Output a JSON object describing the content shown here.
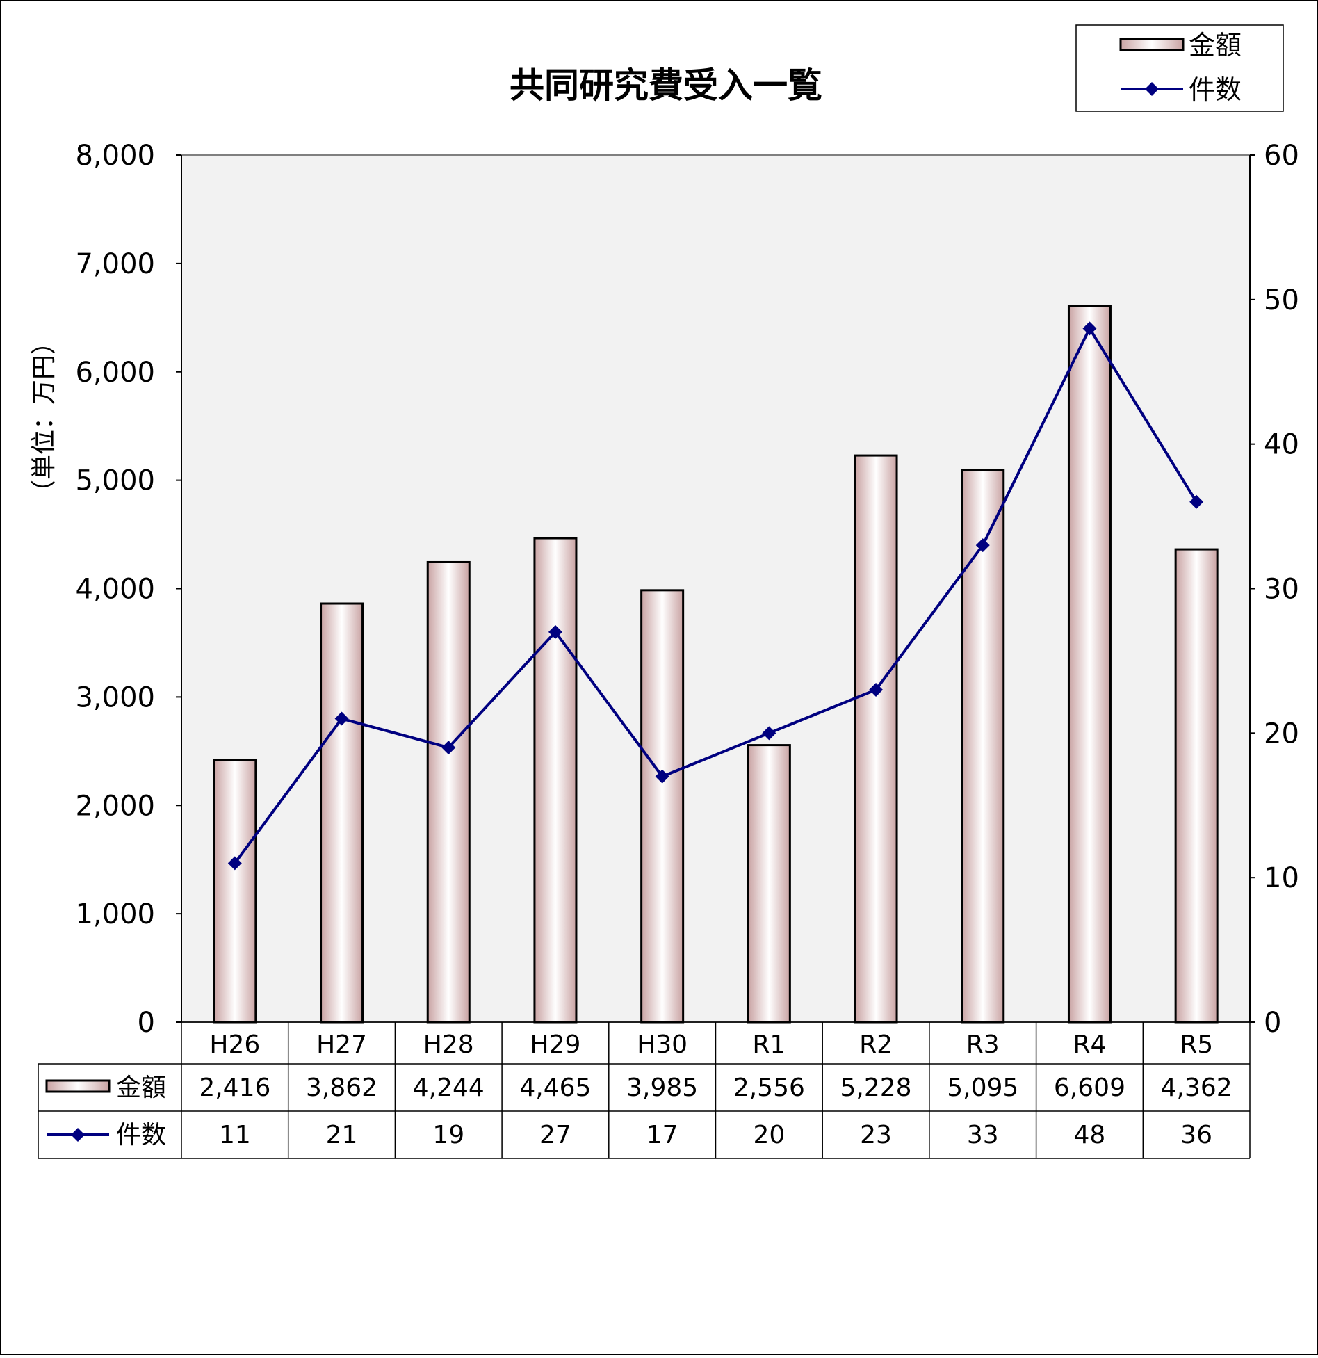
{
  "chart_data": {
    "type": "bar",
    "title": "共同研究費受入一覧",
    "ylabel": "（単位：万円）",
    "xlabel": "",
    "categories": [
      "H26",
      "H27",
      "H28",
      "H29",
      "H30",
      "R1",
      "R2",
      "R3",
      "R4",
      "R5"
    ],
    "ylim": [
      0,
      8000
    ],
    "y_ticks": [
      "0",
      "1,000",
      "2,000",
      "3,000",
      "4,000",
      "5,000",
      "6,000",
      "7,000",
      "8,000"
    ],
    "y2lim": [
      0,
      60
    ],
    "y2_ticks": [
      "0",
      "10",
      "20",
      "30",
      "40",
      "50",
      "60"
    ],
    "grid": false,
    "legend_position": "top-right",
    "series": [
      {
        "name": "金額",
        "type": "bar",
        "axis": "left",
        "values": [
          2416,
          3862,
          4244,
          4465,
          3985,
          2556,
          5228,
          5095,
          6609,
          4362
        ],
        "labels": [
          "2,416",
          "3,862",
          "4,244",
          "4,465",
          "3,985",
          "2,556",
          "5,228",
          "5,095",
          "6,609",
          "4,362"
        ]
      },
      {
        "name": "件数",
        "type": "line",
        "axis": "right",
        "values": [
          11,
          21,
          19,
          27,
          17,
          20,
          23,
          33,
          48,
          36
        ],
        "labels": [
          "11",
          "21",
          "19",
          "27",
          "17",
          "20",
          "23",
          "33",
          "48",
          "36"
        ]
      }
    ],
    "colors": {
      "plot_background": "#f2f2f2",
      "bar_edge": "#c9a3a3",
      "bar_center": "#ffffff",
      "bar_stroke": "#000000",
      "line": "#000080",
      "axis": "#000000"
    }
  }
}
